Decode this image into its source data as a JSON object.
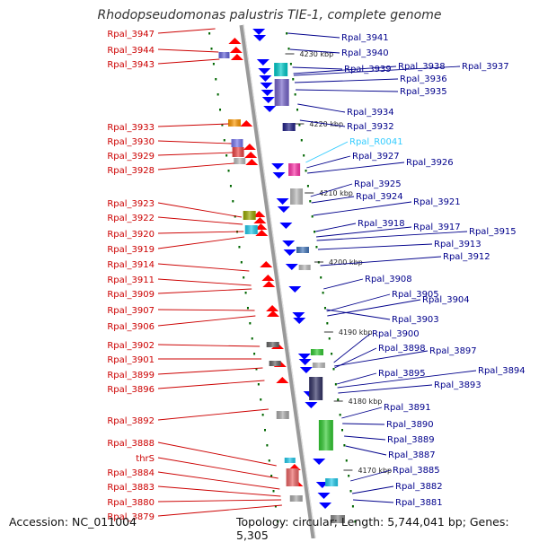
{
  "title": "Rhodopseudomonas palustris TIE-1, complete genome",
  "footer": {
    "accession": "Accession: NC_011004",
    "topology": "Topology: circular; Length: 5,744,041 bp; Genes: 5,305"
  },
  "colors": {
    "left_label": "#cc0000",
    "right_label": "#00008b",
    "rna_label": "#33ccff",
    "plus_strand": "#ff0000",
    "minus_strand": "#0000ff",
    "backbone": "#999999",
    "tick": "#006600"
  },
  "kbp_markers": [
    "4230 kbp",
    "4220 kbp",
    "4210 kbp",
    "4200 kbp",
    "4190 kbp",
    "4180 kbp",
    "4170 kbp"
  ],
  "left_labels": [
    "Rpal_3947",
    "Rpal_3944",
    "Rpal_3943",
    "Rpal_3933",
    "Rpal_3930",
    "Rpal_3929",
    "Rpal_3928",
    "Rpal_3923",
    "Rpal_3922",
    "Rpal_3920",
    "Rpal_3919",
    "Rpal_3914",
    "Rpal_3911",
    "Rpal_3909",
    "Rpal_3907",
    "Rpal_3906",
    "Rpal_3902",
    "Rpal_3901",
    "Rpal_3899",
    "Rpal_3896",
    "Rpal_3892",
    "Rpal_3888",
    "thrS",
    "Rpal_3884",
    "Rpal_3883",
    "Rpal_3880",
    "Rpal_3879"
  ],
  "right_labels": [
    "Rpal_3941",
    "Rpal_3940",
    "Rpal_3939",
    "Rpal_3938",
    "Rpal_3937",
    "Rpal_3936",
    "Rpal_3935",
    "Rpal_3934",
    "Rpal_3932",
    "Rpal_R0041",
    "Rpal_3927",
    "Rpal_3926",
    "Rpal_3925",
    "Rpal_3924",
    "Rpal_3921",
    "Rpal_3918",
    "Rpal_3917",
    "Rpal_3915",
    "Rpal_3913",
    "Rpal_3912",
    "Rpal_3908",
    "Rpal_3905",
    "Rpal_3904",
    "Rpal_3903",
    "Rpal_3900",
    "Rpal_3898",
    "Rpal_3897",
    "Rpal_3895",
    "Rpal_3894",
    "Rpal_3893",
    "Rpal_3891",
    "Rpal_3890",
    "Rpal_3889",
    "Rpal_3887",
    "Rpal_3885",
    "Rpal_3882",
    "Rpal_3881"
  ]
}
